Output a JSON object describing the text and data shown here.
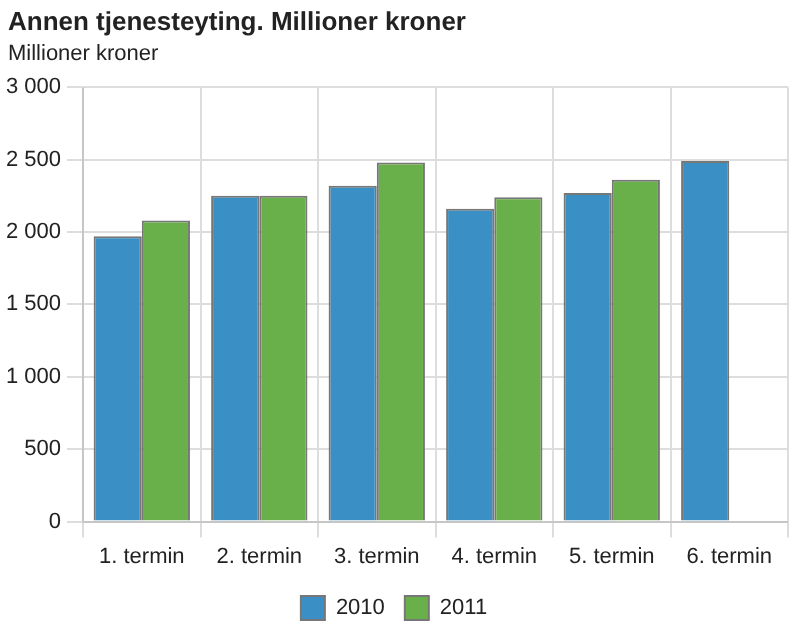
{
  "chart_data": {
    "type": "bar",
    "title": "Annen tjenesteyting. Millioner kroner",
    "ylabel": "Millioner kroner",
    "categories": [
      "1. termin",
      "2. termin",
      "3. termin",
      "4. termin",
      "5. termin",
      "6. termin"
    ],
    "series": [
      {
        "name": "2010",
        "color": "#3a8fc4",
        "values": [
          1970,
          2250,
          2320,
          2160,
          2270,
          2490
        ]
      },
      {
        "name": "2011",
        "color": "#6ab04a",
        "values": [
          2080,
          2250,
          2480,
          2240,
          2360,
          null
        ]
      }
    ],
    "ylim": [
      0,
      3000
    ],
    "yticks": [
      0,
      500,
      {
        "value": 1000,
        "label": "1 000"
      },
      {
        "value": 1500,
        "label": "1 500"
      },
      {
        "value": 2000,
        "label": "2 000"
      },
      {
        "value": 2500,
        "label": "2 500"
      },
      {
        "value": 3000,
        "label": "3 000"
      }
    ],
    "grid": true,
    "legend": "bottom"
  }
}
